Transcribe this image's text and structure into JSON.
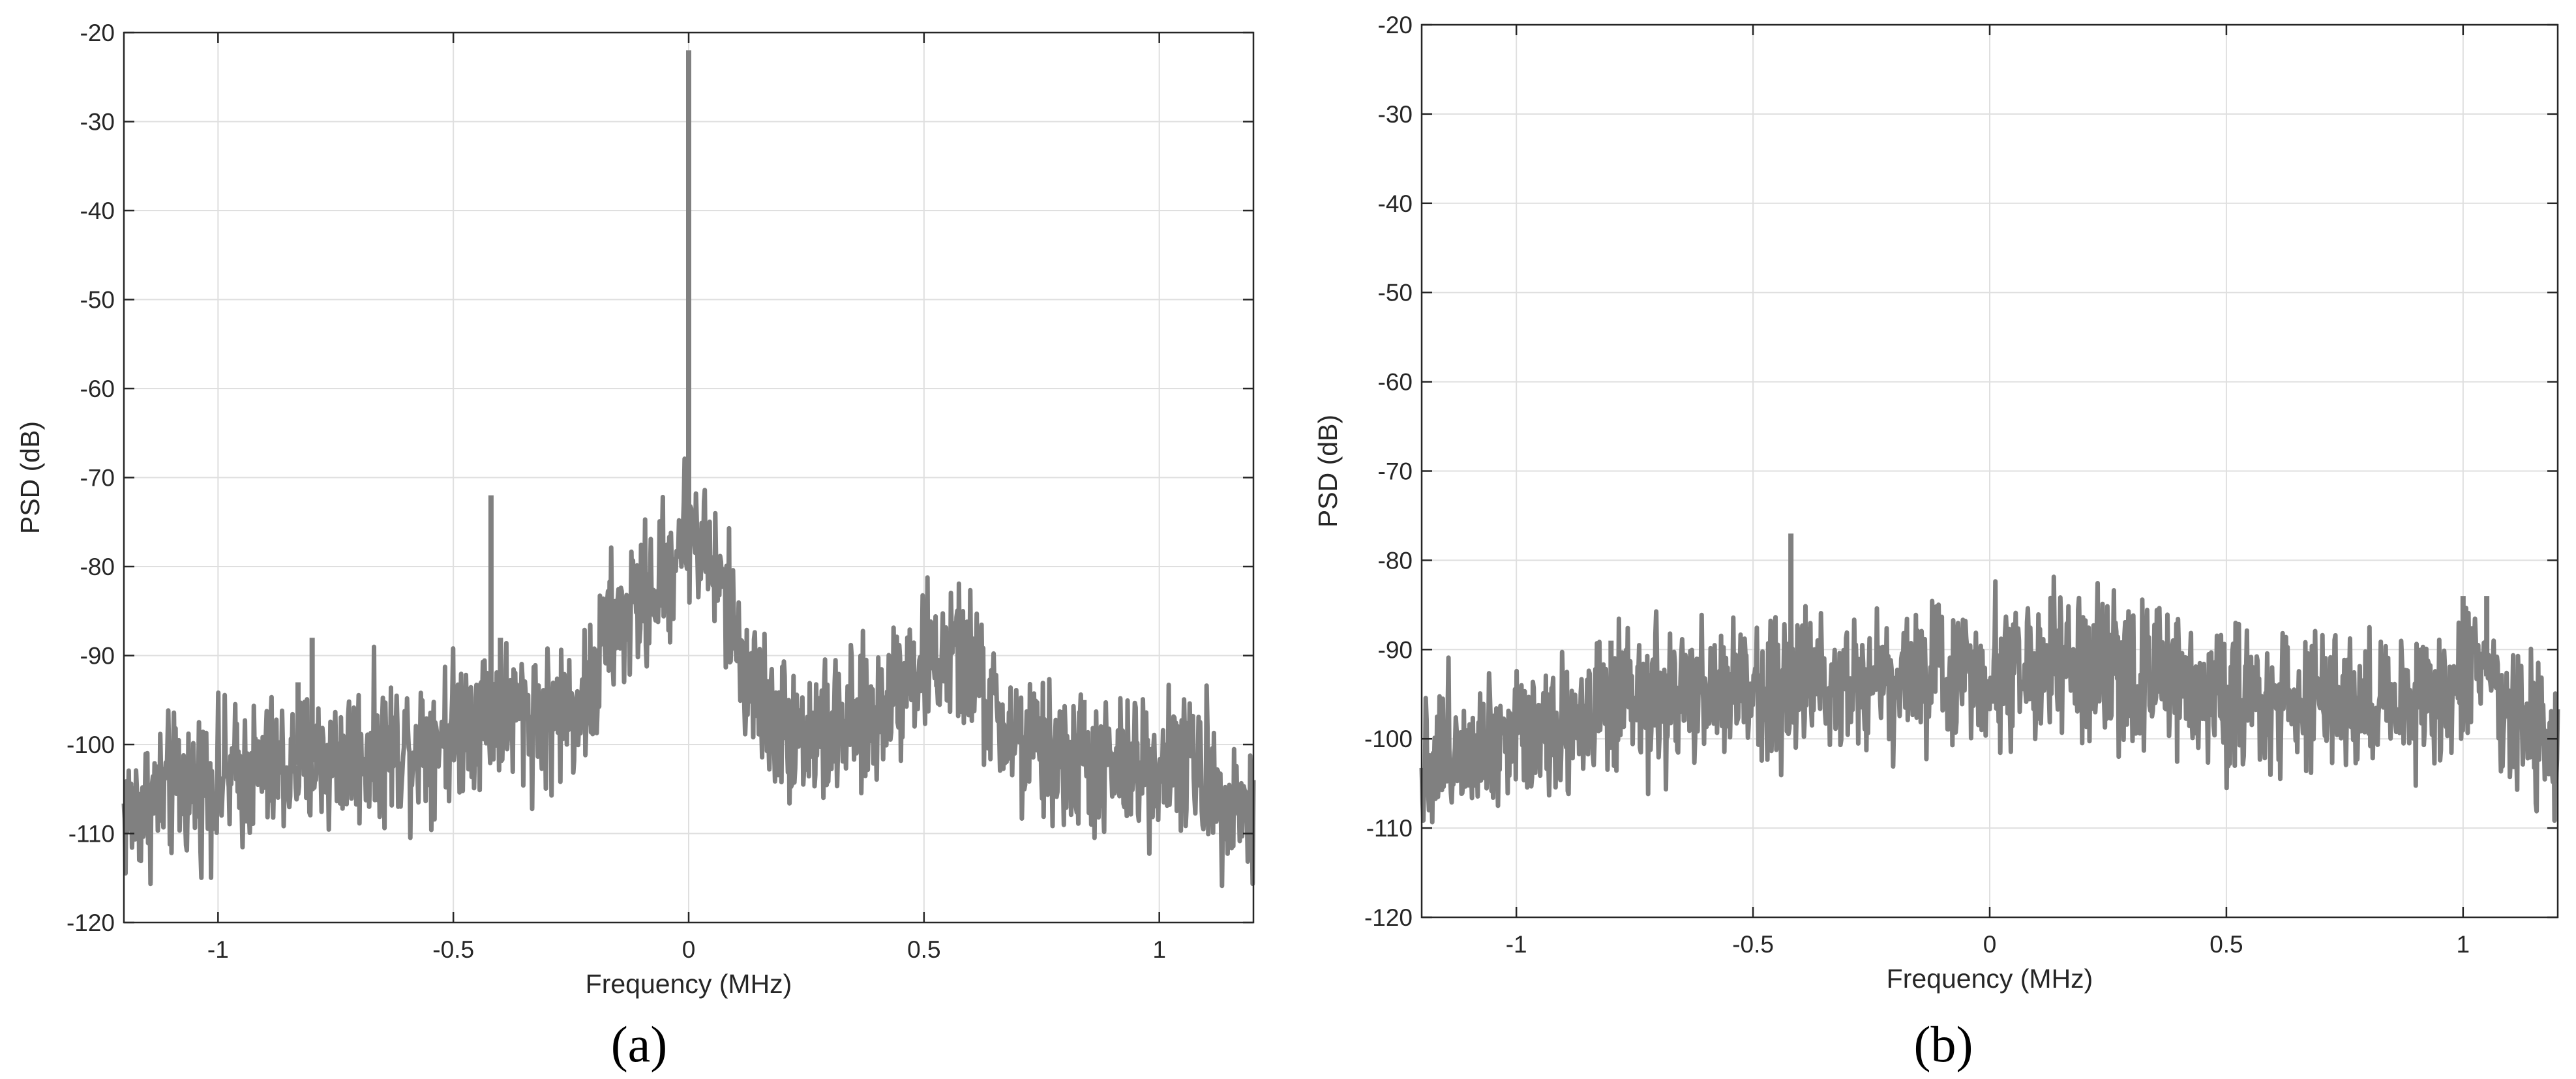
{
  "figure": {
    "panels": [
      "(a)",
      "(b)"
    ]
  },
  "chart_data": [
    {
      "type": "line",
      "panel_label": "(a)",
      "xlabel": "Frequency (MHz)",
      "ylabel": "PSD (dB)",
      "xlim": [
        -1.2,
        1.2
      ],
      "ylim": [
        -120,
        -20
      ],
      "xticks": [
        -1,
        -0.5,
        0,
        0.5,
        1
      ],
      "xtick_labels": [
        "-1",
        "-0.5",
        "0",
        "0.5",
        "1"
      ],
      "yticks": [
        -120,
        -110,
        -100,
        -90,
        -80,
        -70,
        -60,
        -50,
        -40,
        -30,
        -20
      ],
      "ytick_labels": [
        "-120",
        "-110",
        "-100",
        "-90",
        "-80",
        "-70",
        "-60",
        "-50",
        "-40",
        "-30",
        "-20"
      ],
      "grid": true,
      "line_color": "#808080",
      "envelope": [
        [
          -1.2,
          -108
        ],
        [
          -1.1,
          -105
        ],
        [
          -1.0,
          -104
        ],
        [
          -0.9,
          -103
        ],
        [
          -0.8,
          -102
        ],
        [
          -0.7,
          -101
        ],
        [
          -0.6,
          -100
        ],
        [
          -0.5,
          -98
        ],
        [
          -0.45,
          -96
        ],
        [
          -0.4,
          -96
        ],
        [
          -0.3,
          -97
        ],
        [
          -0.25,
          -96
        ],
        [
          -0.2,
          -94
        ],
        [
          -0.18,
          -88
        ],
        [
          -0.12,
          -85
        ],
        [
          -0.08,
          -83
        ],
        [
          -0.04,
          -80
        ],
        [
          -0.02,
          -77
        ],
        [
          0.0,
          -75
        ],
        [
          0.02,
          -77
        ],
        [
          0.05,
          -80
        ],
        [
          0.08,
          -84
        ],
        [
          0.1,
          -88
        ],
        [
          0.14,
          -94
        ],
        [
          0.2,
          -98
        ],
        [
          0.3,
          -99
        ],
        [
          0.4,
          -97
        ],
        [
          0.45,
          -92
        ],
        [
          0.5,
          -91
        ],
        [
          0.55,
          -90
        ],
        [
          0.6,
          -91
        ],
        [
          0.65,
          -97
        ],
        [
          0.7,
          -100
        ],
        [
          0.8,
          -102
        ],
        [
          0.9,
          -103
        ],
        [
          1.0,
          -102
        ],
        [
          1.05,
          -101
        ],
        [
          1.1,
          -104
        ],
        [
          1.15,
          -106
        ],
        [
          1.2,
          -108
        ]
      ],
      "spread": 5,
      "spikes": [
        {
          "x": -0.83,
          "y": -93
        },
        {
          "x": -0.8,
          "y": -88
        },
        {
          "x": -0.42,
          "y": -72
        },
        {
          "x": -0.4,
          "y": -88
        },
        {
          "x": 0.0,
          "y": -22
        },
        {
          "x": 0.0,
          "y": -64
        },
        {
          "x": 0.84,
          "y": -95
        }
      ]
    },
    {
      "type": "line",
      "panel_label": "(b)",
      "xlabel": "Frequency (MHz)",
      "ylabel": "PSD (dB)",
      "xlim": [
        -1.2,
        1.2
      ],
      "ylim": [
        -120,
        -20
      ],
      "xticks": [
        -1,
        -0.5,
        0,
        0.5,
        1
      ],
      "xtick_labels": [
        "-1",
        "-0.5",
        "0",
        "0.5",
        "1"
      ],
      "yticks": [
        -120,
        -110,
        -100,
        -90,
        -80,
        -70,
        -60,
        -50,
        -40,
        -30,
        -20
      ],
      "ytick_labels": [
        "-120",
        "-110",
        "-100",
        "-90",
        "-80",
        "-70",
        "-60",
        "-50",
        "-40",
        "-30",
        "-20"
      ],
      "grid": true,
      "line_color": "#808080",
      "envelope": [
        [
          -1.2,
          -103
        ],
        [
          -1.1,
          -100
        ],
        [
          -1.0,
          -99
        ],
        [
          -0.9,
          -98
        ],
        [
          -0.8,
          -97
        ],
        [
          -0.7,
          -96
        ],
        [
          -0.6,
          -95
        ],
        [
          -0.5,
          -94
        ],
        [
          -0.4,
          -93.5
        ],
        [
          -0.3,
          -93
        ],
        [
          -0.2,
          -93
        ],
        [
          -0.1,
          -92.5
        ],
        [
          0.0,
          -92
        ],
        [
          0.1,
          -92
        ],
        [
          0.2,
          -92.5
        ],
        [
          0.3,
          -93
        ],
        [
          0.4,
          -94
        ],
        [
          0.5,
          -95
        ],
        [
          0.6,
          -95.5
        ],
        [
          0.7,
          -96
        ],
        [
          0.8,
          -96
        ],
        [
          0.9,
          -96
        ],
        [
          0.95,
          -95
        ],
        [
          1.0,
          -93
        ],
        [
          1.05,
          -93
        ],
        [
          1.1,
          -96
        ],
        [
          1.15,
          -100
        ],
        [
          1.2,
          -103
        ]
      ],
      "spread": 5,
      "spikes": [
        {
          "x": -0.42,
          "y": -77
        },
        {
          "x": -0.8,
          "y": -89
        },
        {
          "x": 1.05,
          "y": -84
        },
        {
          "x": 1.0,
          "y": -84
        }
      ]
    }
  ]
}
